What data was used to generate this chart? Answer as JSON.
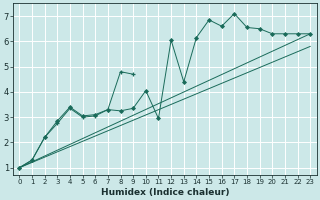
{
  "bg_color": "#cce8e8",
  "grid_color": "#b0d4d4",
  "line_color": "#1a6b5a",
  "xlabel": "Humidex (Indice chaleur)",
  "xlim": [
    -0.5,
    23.5
  ],
  "ylim": [
    0.7,
    7.5
  ],
  "yticks": [
    1,
    2,
    3,
    4,
    5,
    6,
    7
  ],
  "xticks": [
    0,
    1,
    2,
    3,
    4,
    5,
    6,
    7,
    8,
    9,
    10,
    11,
    12,
    13,
    14,
    15,
    16,
    17,
    18,
    19,
    20,
    21,
    22,
    23
  ],
  "series1_x": [
    0,
    1,
    2,
    3,
    4,
    5,
    6,
    7,
    8,
    9
  ],
  "series1_y": [
    1.0,
    1.3,
    2.2,
    2.75,
    3.35,
    3.0,
    3.05,
    3.3,
    4.8,
    4.7
  ],
  "series2_x": [
    0,
    1,
    2,
    3,
    4,
    5,
    6,
    7,
    8,
    9,
    10,
    11,
    12,
    13,
    14,
    15,
    16,
    17,
    18,
    19,
    20,
    21,
    22,
    23
  ],
  "series2_y": [
    1.0,
    1.3,
    2.2,
    2.85,
    3.4,
    3.05,
    3.1,
    3.3,
    3.25,
    3.35,
    4.05,
    2.95,
    6.05,
    4.4,
    6.15,
    6.85,
    6.6,
    7.1,
    6.55,
    6.5,
    6.3,
    6.3,
    6.3,
    6.3
  ],
  "series3_x": [
    0,
    23
  ],
  "series3_y": [
    1.0,
    6.3
  ],
  "series4_x": [
    0,
    23
  ],
  "series4_y": [
    1.0,
    6.3
  ]
}
